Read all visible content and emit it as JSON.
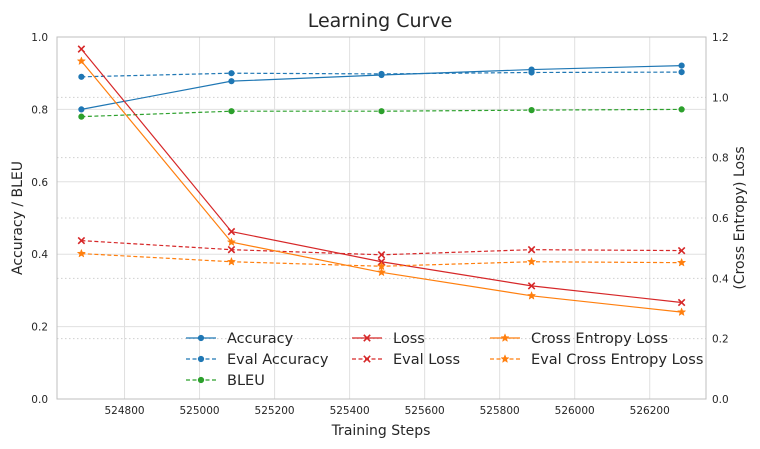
{
  "chart_data": {
    "type": "line",
    "title": "Learning Curve",
    "xlabel": "Training Steps",
    "ylabel_left": "Accuracy / BLEU",
    "ylabel_right": "(Cross Entropy) Loss",
    "xlim": [
      524620,
      526350
    ],
    "ylim_left": [
      0,
      1.0
    ],
    "ylim_right": [
      0,
      1.2
    ],
    "x_ticks": [
      524800,
      525000,
      525200,
      525400,
      525600,
      525800,
      526000,
      526200
    ],
    "y_ticks_left": [
      "0.0",
      "0.2",
      "0.4",
      "0.6",
      "0.8",
      "1.0"
    ],
    "y_ticks_right": [
      "0.0",
      "0.2",
      "0.4",
      "0.6",
      "0.8",
      "1.0",
      "1.2"
    ],
    "grid": true,
    "legend_position": "lower-center",
    "series": [
      {
        "name": "Accuracy",
        "axis": "left",
        "color": "#1f77b4",
        "dash": "solid",
        "marker": "circle",
        "x": [
          524685,
          525085,
          525485,
          525885,
          526285
        ],
        "values": [
          0.8,
          0.878,
          0.895,
          0.91,
          0.921
        ]
      },
      {
        "name": "Eval Accuracy",
        "axis": "left",
        "color": "#1f77b4",
        "dash": "dashed",
        "marker": "circle",
        "x": [
          524685,
          525085,
          525485,
          525885,
          526285
        ],
        "values": [
          0.89,
          0.9,
          0.898,
          0.902,
          0.903
        ]
      },
      {
        "name": "BLEU",
        "axis": "left",
        "color": "#2ca02c",
        "dash": "dashed",
        "marker": "circle",
        "x": [
          524685,
          525085,
          525485,
          525885,
          526285
        ],
        "values": [
          0.78,
          0.795,
          0.795,
          0.798,
          0.8
        ]
      },
      {
        "name": "Loss",
        "axis": "right",
        "color": "#d62728",
        "dash": "solid",
        "marker": "x",
        "x": [
          524685,
          525085,
          525485,
          525885,
          526285
        ],
        "values": [
          1.16,
          0.555,
          0.455,
          0.375,
          0.32
        ]
      },
      {
        "name": "Eval Loss",
        "axis": "right",
        "color": "#d62728",
        "dash": "dashed",
        "marker": "x",
        "x": [
          524685,
          525085,
          525485,
          525885,
          526285
        ],
        "values": [
          0.525,
          0.495,
          0.478,
          0.495,
          0.492
        ]
      },
      {
        "name": "Cross Entropy Loss",
        "axis": "right",
        "color": "#ff7f0e",
        "dash": "solid",
        "marker": "star",
        "x": [
          524685,
          525085,
          525485,
          525885,
          526285
        ],
        "values": [
          1.12,
          0.52,
          0.42,
          0.342,
          0.288
        ]
      },
      {
        "name": "Eval Cross Entropy Loss",
        "axis": "right",
        "color": "#ff7f0e",
        "dash": "dashed",
        "marker": "star",
        "x": [
          524685,
          525085,
          525485,
          525885,
          526285
        ],
        "values": [
          0.482,
          0.455,
          0.44,
          0.455,
          0.452
        ]
      }
    ]
  }
}
